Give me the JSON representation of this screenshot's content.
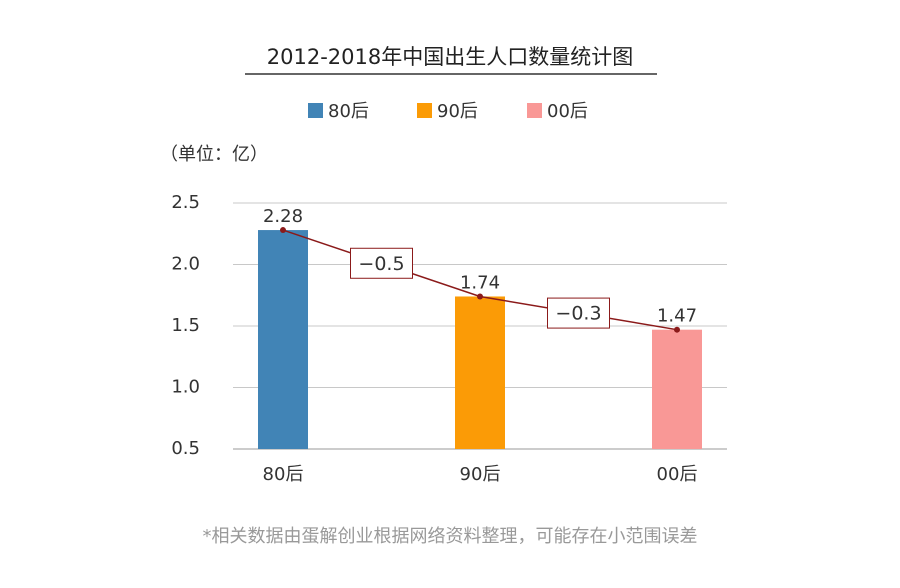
{
  "chart_data": {
    "type": "bar",
    "title": "2012-2018年中国出生人口数量统计图",
    "unit": "（单位：亿）",
    "categories": [
      "80后",
      "90后",
      "00后"
    ],
    "values": [
      2.28,
      1.74,
      1.47
    ],
    "colors": [
      "#4184b6",
      "#fb9b06",
      "#f99896"
    ],
    "ylim": [
      0.5,
      2.5
    ],
    "yticks": [
      0.5,
      {
        "value": 1.0,
        "label": "1.0"
      },
      1.5,
      {
        "value": 2.0,
        "label": "2.0"
      },
      2.5
    ],
    "grid": true,
    "line_color": "#8b1a1a",
    "annotations": [
      "−0.5",
      "−0.3"
    ],
    "note": "*相关数据由蛋解创业根据网络资料整理，可能存在小范围误差"
  }
}
